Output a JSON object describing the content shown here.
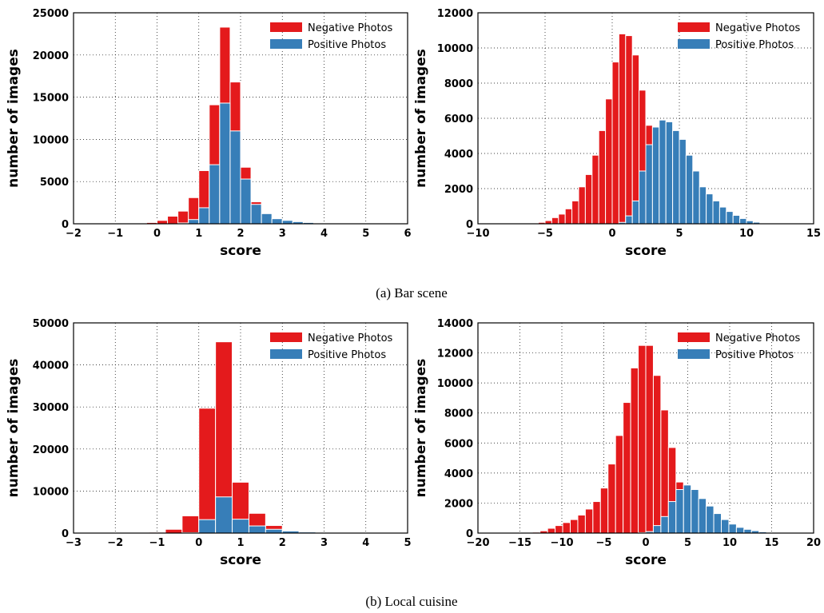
{
  "colors": {
    "negative": "#e41a1c",
    "positive": "#377eb8"
  },
  "captions": [
    "(a) Bar scene",
    "(b) Local cuisine"
  ],
  "chart_data": [
    {
      "type": "bar",
      "xlabel": "score",
      "ylabel": "number of images",
      "xlim": [
        -2,
        6
      ],
      "ylim": [
        0,
        25000
      ],
      "xticks": [
        "−2",
        "−1",
        "0",
        "1",
        "2",
        "3",
        "4",
        "5",
        "6"
      ],
      "yticks": [
        "0",
        "5000",
        "10000",
        "15000",
        "20000",
        "25000"
      ],
      "grid": true,
      "legend_position": "top-right",
      "bin_width": 0.25,
      "series": [
        {
          "name": "Negative Photos",
          "color": "negative",
          "x": [
            -0.5,
            -0.25,
            0.0,
            0.25,
            0.5,
            0.75,
            1.0,
            1.25,
            1.5,
            1.75,
            2.0,
            2.25,
            2.5
          ],
          "values": [
            30,
            150,
            400,
            900,
            1500,
            3100,
            6300,
            14100,
            23300,
            16800,
            6700,
            2600,
            500
          ]
        },
        {
          "name": "Positive Photos",
          "color": "positive",
          "x": [
            0.5,
            0.75,
            1.0,
            1.25,
            1.5,
            1.75,
            2.0,
            2.25,
            2.5,
            2.75,
            3.0,
            3.25,
            3.5,
            3.75,
            4.0
          ],
          "values": [
            100,
            500,
            1900,
            7000,
            14300,
            11000,
            5300,
            2300,
            1200,
            600,
            400,
            250,
            150,
            80,
            40
          ]
        }
      ]
    },
    {
      "type": "bar",
      "xlabel": "score",
      "ylabel": "number of images",
      "xlim": [
        -10,
        15
      ],
      "ylim": [
        0,
        12000
      ],
      "xticks": [
        "−10",
        "−5",
        "0",
        "5",
        "10",
        "15"
      ],
      "yticks": [
        "0",
        "2000",
        "4000",
        "6000",
        "8000",
        "10000",
        "12000"
      ],
      "grid": true,
      "legend_position": "top-right",
      "bin_width": 0.5,
      "series": [
        {
          "name": "Negative Photos",
          "color": "negative",
          "x": [
            -6.0,
            -5.5,
            -5.0,
            -4.5,
            -4.0,
            -3.5,
            -3.0,
            -2.5,
            -2.0,
            -1.5,
            -1.0,
            -0.5,
            0.0,
            0.5,
            1.0,
            1.5,
            2.0,
            2.5,
            3.0,
            3.5,
            4.0
          ],
          "values": [
            30,
            80,
            180,
            350,
            550,
            850,
            1300,
            2100,
            2800,
            3900,
            5300,
            7100,
            9200,
            10800,
            10700,
            9600,
            7600,
            5600,
            3800,
            2000,
            300
          ]
        },
        {
          "name": "Positive Photos",
          "color": "positive",
          "x": [
            0.5,
            1.0,
            1.5,
            2.0,
            2.5,
            3.0,
            3.5,
            4.0,
            4.5,
            5.0,
            5.5,
            6.0,
            6.5,
            7.0,
            7.5,
            8.0,
            8.5,
            9.0,
            9.5,
            10.0,
            10.5,
            11.0,
            11.5
          ],
          "values": [
            80,
            450,
            1300,
            3000,
            4500,
            5500,
            5900,
            5800,
            5300,
            4800,
            3900,
            3000,
            2100,
            1700,
            1300,
            950,
            700,
            480,
            300,
            170,
            90,
            40,
            20
          ]
        }
      ]
    },
    {
      "type": "bar",
      "xlabel": "score",
      "ylabel": "number of images",
      "xlim": [
        -3,
        5
      ],
      "ylim": [
        0,
        50000
      ],
      "xticks": [
        "−3",
        "−2",
        "−1",
        "0",
        "1",
        "2",
        "3",
        "4",
        "5"
      ],
      "yticks": [
        "0",
        "10000",
        "20000",
        "30000",
        "40000",
        "50000"
      ],
      "grid": true,
      "legend_position": "top-right",
      "bin_width": 0.4,
      "series": [
        {
          "name": "Negative Photos",
          "color": "negative",
          "x": [
            -1.2,
            -0.8,
            -0.4,
            0.0,
            0.4,
            0.8,
            1.2,
            1.6,
            2.0
          ],
          "values": [
            200,
            900,
            4100,
            29700,
            45500,
            12100,
            4700,
            1800,
            200
          ]
        },
        {
          "name": "Positive Photos",
          "color": "positive",
          "x": [
            -0.4,
            0.0,
            0.4,
            0.8,
            1.2,
            1.6,
            2.0,
            2.4,
            2.8
          ],
          "values": [
            100,
            3200,
            8600,
            3300,
            1700,
            900,
            500,
            250,
            60
          ]
        }
      ]
    },
    {
      "type": "bar",
      "xlabel": "score",
      "ylabel": "number of images",
      "xlim": [
        -20,
        20
      ],
      "ylim": [
        0,
        14000
      ],
      "xticks": [
        "−20",
        "−15",
        "−10",
        "−5",
        "0",
        "5",
        "10",
        "15",
        "20"
      ],
      "yticks": [
        "0",
        "2000",
        "4000",
        "6000",
        "8000",
        "10000",
        "12000",
        "14000"
      ],
      "grid": true,
      "legend_position": "top-right",
      "bin_width": 0.9,
      "series": [
        {
          "name": "Negative Photos",
          "color": "negative",
          "x": [
            -14.4,
            -13.5,
            -12.6,
            -11.7,
            -10.8,
            -9.9,
            -9.0,
            -8.1,
            -7.2,
            -6.3,
            -5.4,
            -4.5,
            -3.6,
            -2.7,
            -1.8,
            -0.9,
            0.0,
            0.9,
            1.8,
            2.7,
            3.6,
            4.5
          ],
          "values": [
            20,
            60,
            150,
            320,
            500,
            700,
            900,
            1200,
            1600,
            2100,
            3000,
            4600,
            6500,
            8700,
            11000,
            12500,
            12500,
            10500,
            8200,
            5700,
            3400,
            100
          ]
        },
        {
          "name": "Positive Photos",
          "color": "positive",
          "x": [
            -0.9,
            0.0,
            0.9,
            1.8,
            2.7,
            3.6,
            4.5,
            5.4,
            6.3,
            7.2,
            8.1,
            9.0,
            9.9,
            10.8,
            11.7,
            12.6,
            13.5,
            14.4,
            15.3
          ],
          "values": [
            30,
            100,
            500,
            1100,
            2100,
            2900,
            3200,
            2900,
            2300,
            1800,
            1300,
            900,
            600,
            380,
            250,
            160,
            80,
            40,
            15
          ]
        }
      ]
    }
  ]
}
